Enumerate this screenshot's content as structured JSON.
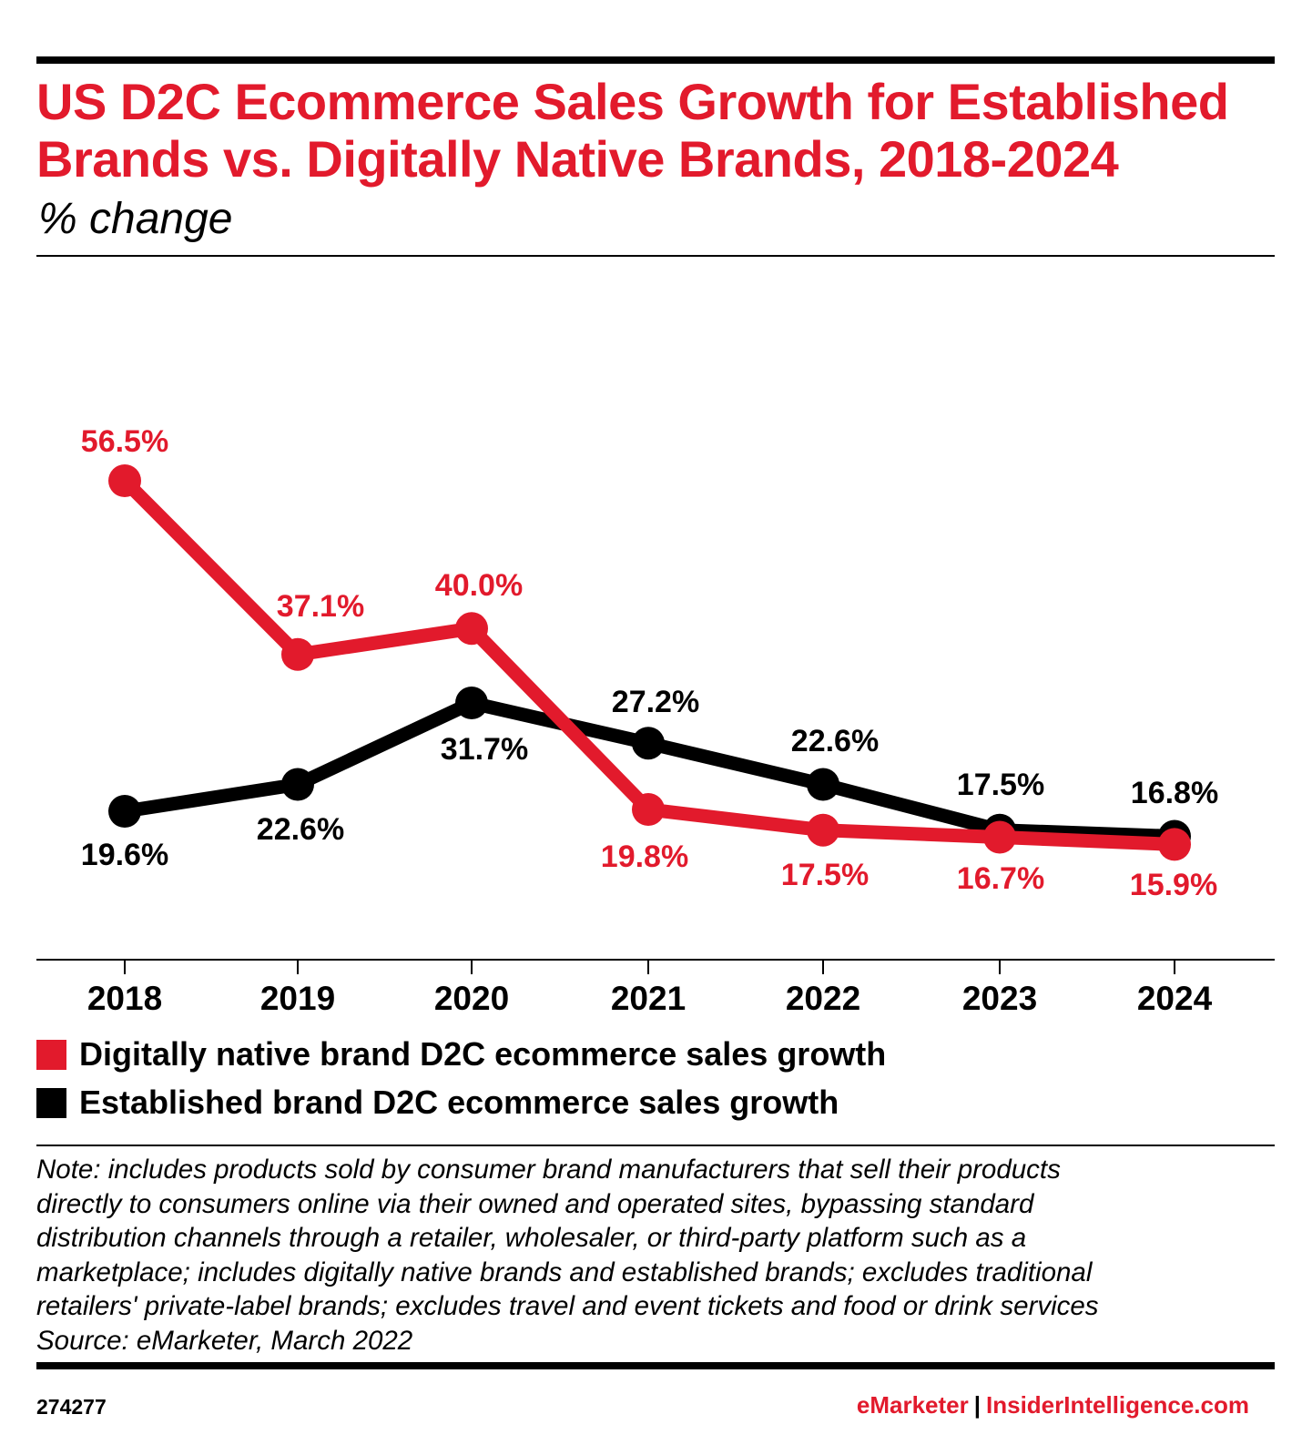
{
  "header": {
    "title": "US D2C Ecommerce Sales Growth for Established Brands vs. Digitally Native Brands, 2018-2024",
    "subtitle": "% change"
  },
  "chart_data": {
    "type": "line",
    "title": "US D2C Ecommerce Sales Growth for Established Brands vs. Digitally Native Brands, 2018-2024",
    "subtitle": "% change",
    "categories": [
      "2018",
      "2019",
      "2020",
      "2021",
      "2022",
      "2023",
      "2024"
    ],
    "series": [
      {
        "name": "Digitally native brand D2C ecommerce sales growth",
        "color": "#e21a2c",
        "values": [
          56.5,
          37.1,
          40.0,
          19.8,
          17.5,
          16.7,
          15.9
        ],
        "labels": [
          "56.5%",
          "37.1%",
          "40.0%",
          "19.8%",
          "17.5%",
          "16.7%",
          "15.9%"
        ]
      },
      {
        "name": "Established brand D2C ecommerce sales growth",
        "color": "#000000",
        "values": [
          19.6,
          22.6,
          31.7,
          27.2,
          22.6,
          17.5,
          16.8
        ],
        "labels": [
          "19.6%",
          "22.6%",
          "31.7%",
          "27.2%",
          "22.6%",
          "17.5%",
          "16.8%"
        ]
      }
    ],
    "grid": false,
    "legend_position": "bottom-left"
  },
  "legend": [
    {
      "label": "Digitally native brand D2C ecommerce sales growth",
      "color": "#e21a2c"
    },
    {
      "label": "Established brand D2C ecommerce sales growth",
      "color": "#000000"
    }
  ],
  "footer": {
    "note": "Note: includes products sold by consumer brand manufacturers that sell their products\ndirectly to consumers online via their owned and operated sites, bypassing standard\ndistribution channels through a retailer, wholesaler, or third-party platform such as a\nmarketplace; includes digitally native brands and established brands; excludes traditional\nretailers' private-label brands; excludes travel and event tickets and food or drink services\nSource: eMarketer, March 2022",
    "chart_id": "274277",
    "brand_emarketer": "eMarketer",
    "brand_separator": "|",
    "brand_insider": "InsiderIntelligence.com"
  }
}
